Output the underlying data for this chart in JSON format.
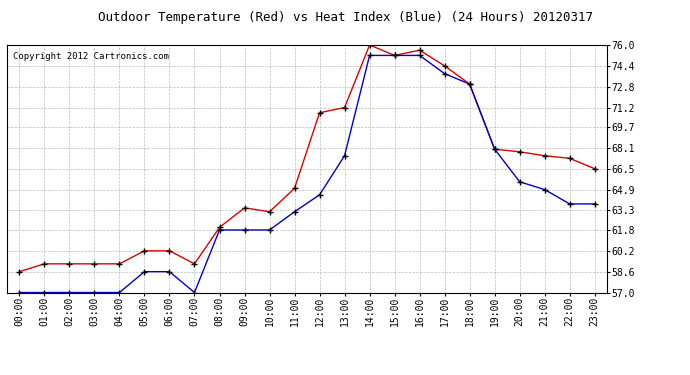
{
  "title": "Outdoor Temperature (Red) vs Heat Index (Blue) (24 Hours) 20120317",
  "copyright_text": "Copyright 2012 Cartronics.com",
  "x_labels": [
    "00:00",
    "01:00",
    "02:00",
    "03:00",
    "04:00",
    "05:00",
    "06:00",
    "07:00",
    "08:00",
    "09:00",
    "10:00",
    "11:00",
    "12:00",
    "13:00",
    "14:00",
    "15:00",
    "16:00",
    "17:00",
    "18:00",
    "19:00",
    "20:00",
    "21:00",
    "22:00",
    "23:00"
  ],
  "temp_red": [
    58.6,
    59.2,
    59.2,
    59.2,
    59.2,
    60.2,
    60.2,
    59.2,
    62.0,
    63.5,
    63.2,
    65.0,
    70.8,
    71.2,
    76.0,
    75.2,
    75.6,
    74.4,
    73.0,
    68.0,
    67.8,
    67.5,
    67.3,
    66.5
  ],
  "heat_blue": [
    57.0,
    57.0,
    57.0,
    57.0,
    57.0,
    58.6,
    58.6,
    57.0,
    61.8,
    61.8,
    61.8,
    63.2,
    64.5,
    67.5,
    75.2,
    75.2,
    75.2,
    73.8,
    73.0,
    68.0,
    65.5,
    64.9,
    63.8,
    63.8
  ],
  "ylim": [
    57.0,
    76.0
  ],
  "yticks": [
    57.0,
    58.6,
    60.2,
    61.8,
    63.3,
    64.9,
    66.5,
    68.1,
    69.7,
    71.2,
    72.8,
    74.4,
    76.0
  ],
  "bg_color": "#ffffff",
  "plot_bg_color": "#ffffff",
  "grid_color": "#bbbbbb",
  "red_color": "#dd0000",
  "blue_color": "#0000cc",
  "title_fontsize": 9,
  "tick_fontsize": 7,
  "copyright_fontsize": 6.5
}
